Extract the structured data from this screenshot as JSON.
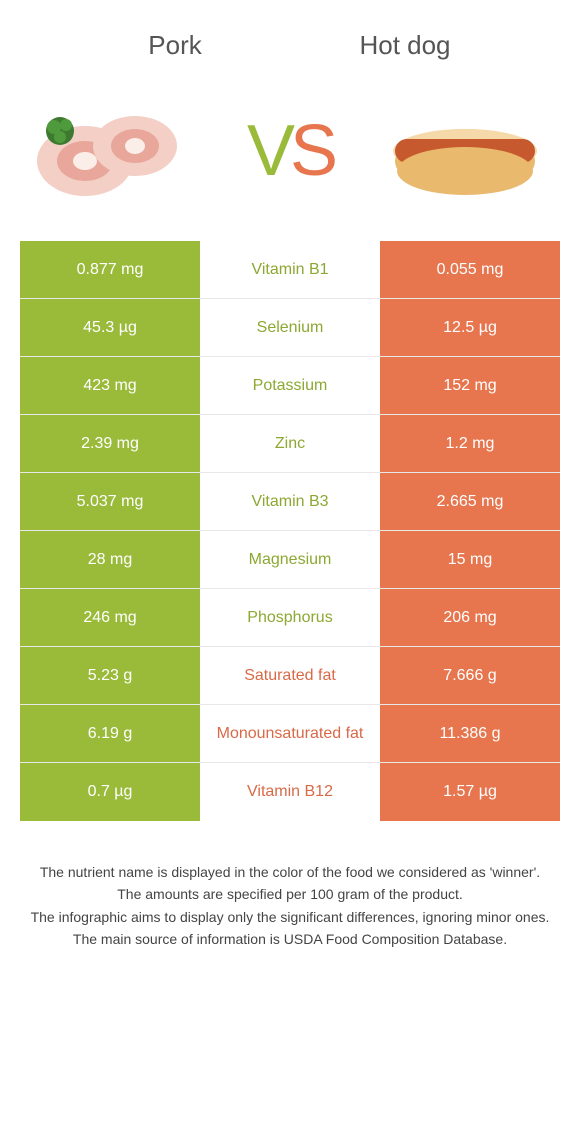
{
  "colors": {
    "green": "#9aba3a",
    "orange": "#e7764f",
    "mid_green_text": "#8ca832",
    "mid_orange_text": "#d96a48",
    "row_border": "#e8e8e8",
    "background": "#ffffff"
  },
  "header": {
    "left_title": "Pork",
    "right_title": "Hot dog"
  },
  "vs": {
    "v": "V",
    "s": "S"
  },
  "rows": [
    {
      "nutrient": "Vitamin B1",
      "left": "0.877 mg",
      "right": "0.055 mg",
      "winner": "left"
    },
    {
      "nutrient": "Selenium",
      "left": "45.3 µg",
      "right": "12.5 µg",
      "winner": "left"
    },
    {
      "nutrient": "Potassium",
      "left": "423 mg",
      "right": "152 mg",
      "winner": "left"
    },
    {
      "nutrient": "Zinc",
      "left": "2.39 mg",
      "right": "1.2 mg",
      "winner": "left"
    },
    {
      "nutrient": "Vitamin B3",
      "left": "5.037 mg",
      "right": "2.665 mg",
      "winner": "left"
    },
    {
      "nutrient": "Magnesium",
      "left": "28 mg",
      "right": "15 mg",
      "winner": "left"
    },
    {
      "nutrient": "Phosphorus",
      "left": "246 mg",
      "right": "206 mg",
      "winner": "left"
    },
    {
      "nutrient": "Saturated fat",
      "left": "5.23 g",
      "right": "7.666 g",
      "winner": "right"
    },
    {
      "nutrient": "Monounsaturated fat",
      "left": "6.19 g",
      "right": "11.386 g",
      "winner": "right"
    },
    {
      "nutrient": "Vitamin B12",
      "left": "0.7 µg",
      "right": "1.57 µg",
      "winner": "right"
    }
  ],
  "notes": {
    "line1": "The nutrient name is displayed in the color of the food we considered as 'winner'.",
    "line2": "The amounts are specified per 100 gram of the product.",
    "line3": "The infographic aims to display only the significant differences, ignoring minor ones.",
    "line4": "The main source of information is USDA Food Composition Database."
  }
}
